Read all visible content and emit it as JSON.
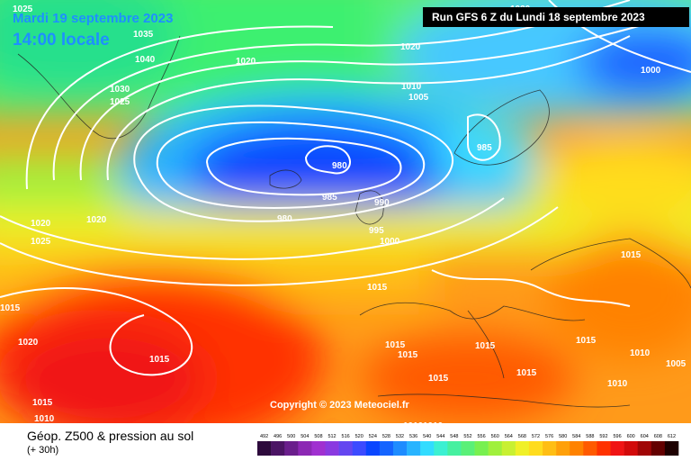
{
  "header": {
    "date": "Mardi 19 septembre 2023",
    "time": "14:00 locale",
    "run": "Run GFS 6 Z du Lundi 18 septembre 2023"
  },
  "copyright": "Copyright © 2023 Meteociel.fr",
  "footer": {
    "title": "Géop. Z500 & pression au sol",
    "subtitle": "(+ 30h)"
  },
  "scale": {
    "ticks": [
      "492",
      "496",
      "500",
      "504",
      "508",
      "512",
      "516",
      "520",
      "524",
      "528",
      "532",
      "536",
      "540",
      "544",
      "548",
      "552",
      "556",
      "560",
      "564",
      "568",
      "572",
      "576",
      "580",
      "584",
      "588",
      "592",
      "596",
      "600",
      "604",
      "608",
      "612"
    ],
    "colors": [
      "#2d0a3c",
      "#4b1464",
      "#6a1e8c",
      "#8c28b4",
      "#a030d0",
      "#8a3ae0",
      "#6446f0",
      "#3c4bff",
      "#0a46ff",
      "#1464ff",
      "#1e8cff",
      "#28b4ff",
      "#32dcff",
      "#3cf0d2",
      "#46f0a0",
      "#5af078",
      "#78f050",
      "#a0f03c",
      "#c8f032",
      "#f0f028",
      "#ffdc1e",
      "#ffbe14",
      "#ffa00a",
      "#ff8200",
      "#ff5a00",
      "#ff3200",
      "#f01414",
      "#d20a0a",
      "#a00505",
      "#640000",
      "#1e0000"
    ]
  },
  "pressure_labels": [
    {
      "text": "1035"
    },
    {
      "text": "1040"
    },
    {
      "text": "1030"
    },
    {
      "text": "1025"
    },
    {
      "text": "1020"
    },
    {
      "text": "1020"
    },
    {
      "text": "1010"
    },
    {
      "text": "1005"
    },
    {
      "text": "1000"
    },
    {
      "text": "1020"
    },
    {
      "text": "980"
    },
    {
      "text": "985"
    },
    {
      "text": "985"
    },
    {
      "text": "990"
    },
    {
      "text": "980"
    },
    {
      "text": "995"
    },
    {
      "text": "1000"
    },
    {
      "text": "1020"
    },
    {
      "text": "1025"
    },
    {
      "text": "1015"
    },
    {
      "text": "1015"
    },
    {
      "text": "1020"
    },
    {
      "text": "1015"
    },
    {
      "text": "1015"
    },
    {
      "text": "1015"
    },
    {
      "text": "1015"
    },
    {
      "text": "1015"
    },
    {
      "text": "1015"
    },
    {
      "text": "1015"
    },
    {
      "text": "1015"
    },
    {
      "text": "1010"
    },
    {
      "text": "1005"
    },
    {
      "text": "1010"
    },
    {
      "text": "1015"
    },
    {
      "text": "1010"
    },
    {
      "text": "1010"
    },
    {
      "text": "1010"
    },
    {
      "text": "1025"
    },
    {
      "text": "1020"
    }
  ]
}
